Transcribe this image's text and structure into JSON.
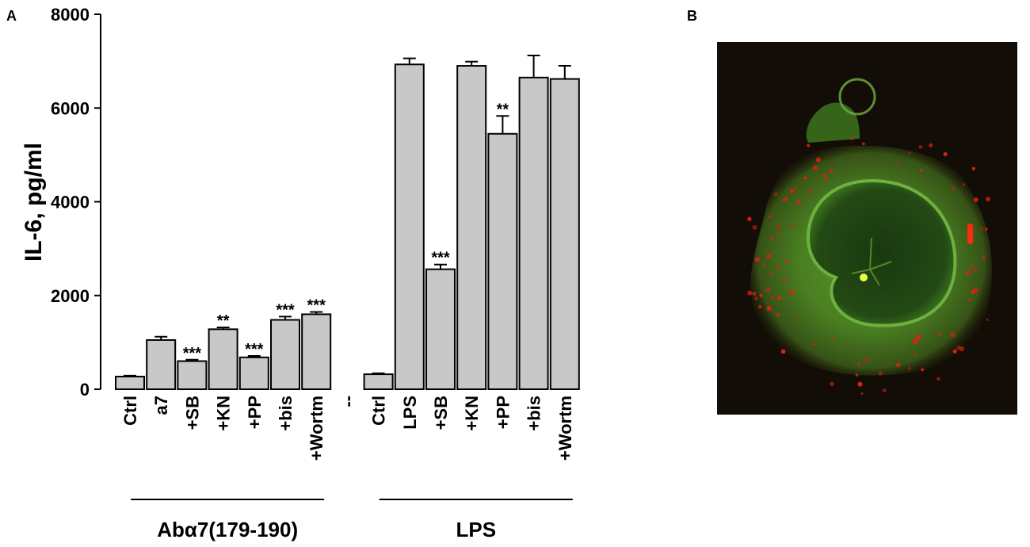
{
  "panels": {
    "a_label": "A",
    "b_label": "B"
  },
  "chart_data": {
    "type": "bar",
    "ylabel": "IL-6, pg/ml",
    "xlabel": "",
    "ylim": [
      0,
      8000
    ],
    "yticks": [
      0,
      2000,
      4000,
      6000,
      8000
    ],
    "bar_color": "#c8c8c8",
    "categories": [
      "Ctrl",
      "a7",
      "+SB",
      "+KN",
      "+PP",
      "+bis",
      "+Wortm",
      "--",
      "Ctrl",
      "LPS",
      "+SB",
      "+KN",
      "+PP",
      "+bis",
      "+Wortm"
    ],
    "values": [
      270,
      1050,
      600,
      1280,
      680,
      1480,
      1600,
      null,
      320,
      6930,
      2560,
      6900,
      5450,
      6650,
      6620
    ],
    "errors": [
      20,
      70,
      30,
      40,
      30,
      70,
      50,
      null,
      20,
      130,
      100,
      90,
      380,
      470,
      280
    ],
    "significance": [
      "",
      "",
      "***",
      "**",
      "***",
      "***",
      "***",
      "",
      "",
      "",
      "***",
      "",
      "**",
      "",
      ""
    ],
    "groups": [
      {
        "label": "Abα7(179-190)",
        "from": 1,
        "to": 6
      },
      {
        "label": "LPS",
        "from": 9,
        "to": 14
      }
    ]
  },
  "image_panel": {
    "background": "#120d06",
    "cytoplasm_color": "#5a9a2a",
    "nucleus_color": "#1f3f12",
    "puncta_color": "#e02010"
  }
}
